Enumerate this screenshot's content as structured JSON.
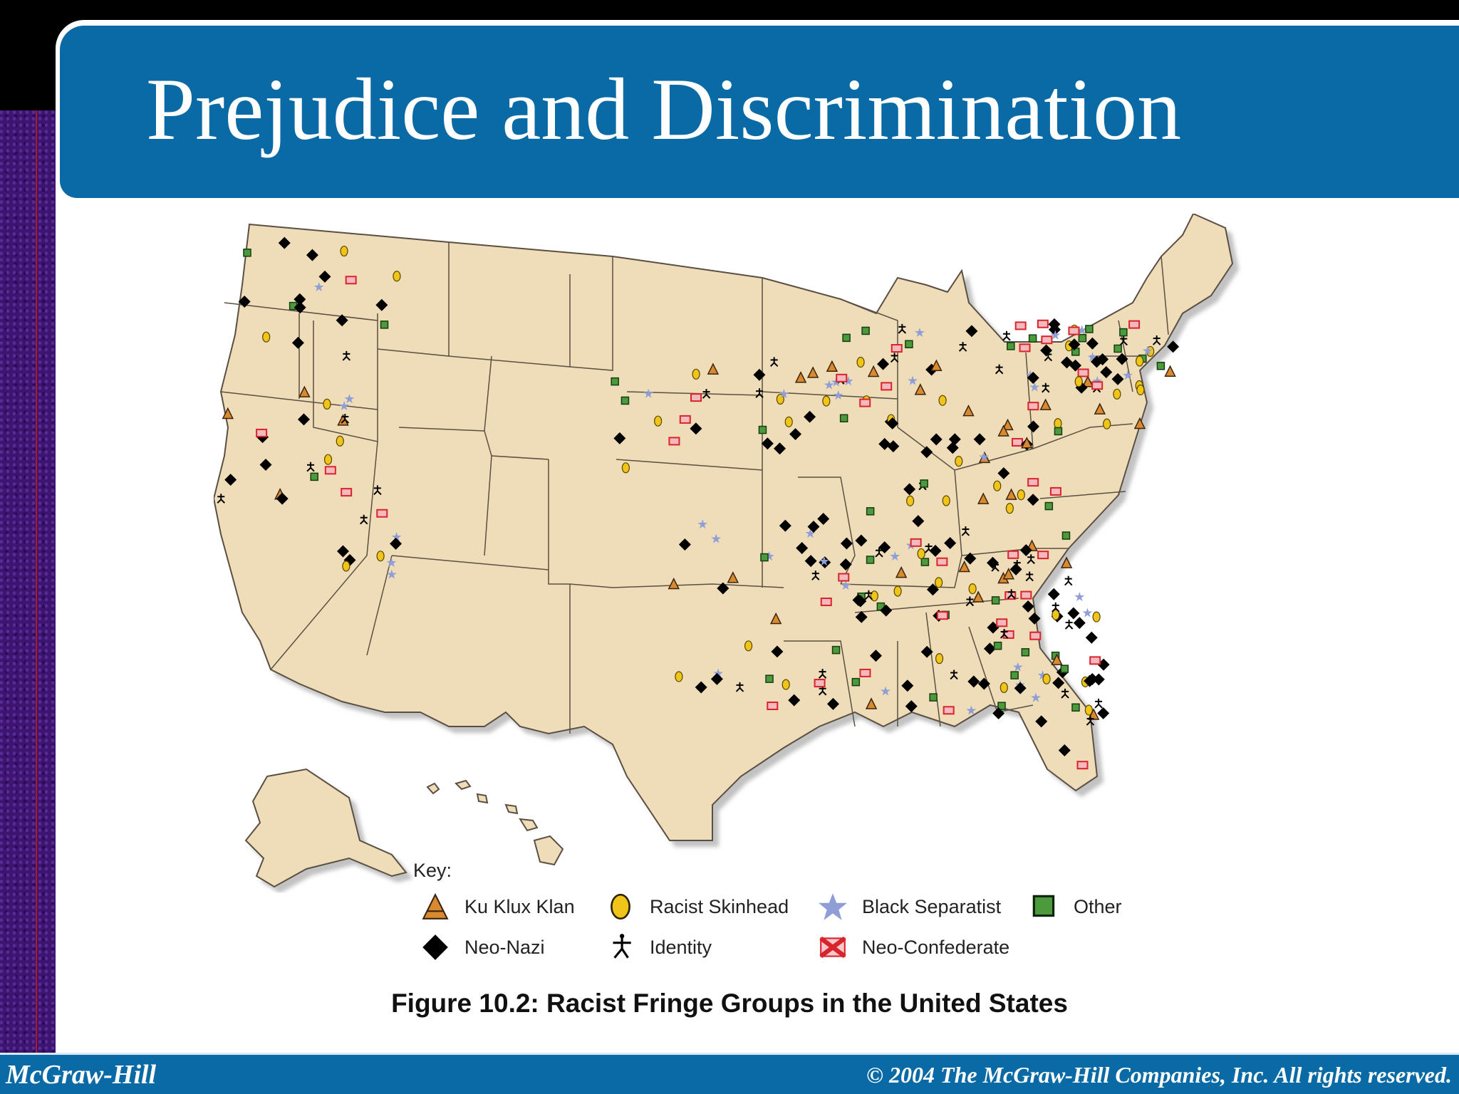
{
  "slide": {
    "title": "Prejudice and Discrimination",
    "caption": "Figure 10.2: Racist Fringe Groups in the United States"
  },
  "legend": {
    "key_label": "Key:",
    "items": [
      {
        "label": "Ku Klux Klan",
        "icon": "triangle-icon",
        "color": "#d98a2f"
      },
      {
        "label": "Racist Skinhead",
        "icon": "oval-icon",
        "color": "#f0c419"
      },
      {
        "label": "Black Separatist",
        "icon": "star-icon",
        "color": "#8f9ed6"
      },
      {
        "label": "Other",
        "icon": "square-icon",
        "color": "#4c9a3c"
      },
      {
        "label": "Neo-Nazi",
        "icon": "swastika-icon",
        "color": "#000000"
      },
      {
        "label": "Identity",
        "icon": "stick-figure-icon",
        "color": "#000000"
      },
      {
        "label": "Neo-Confederate",
        "icon": "confederate-flag-icon",
        "color": "#d8242a"
      }
    ]
  },
  "map": {
    "land_color": "#efdcb8",
    "border_color": "#5a5043"
  },
  "footer": {
    "left": "McGraw-Hill",
    "right": "© 2004 The McGraw-Hill Companies, Inc. All rights reserved."
  }
}
